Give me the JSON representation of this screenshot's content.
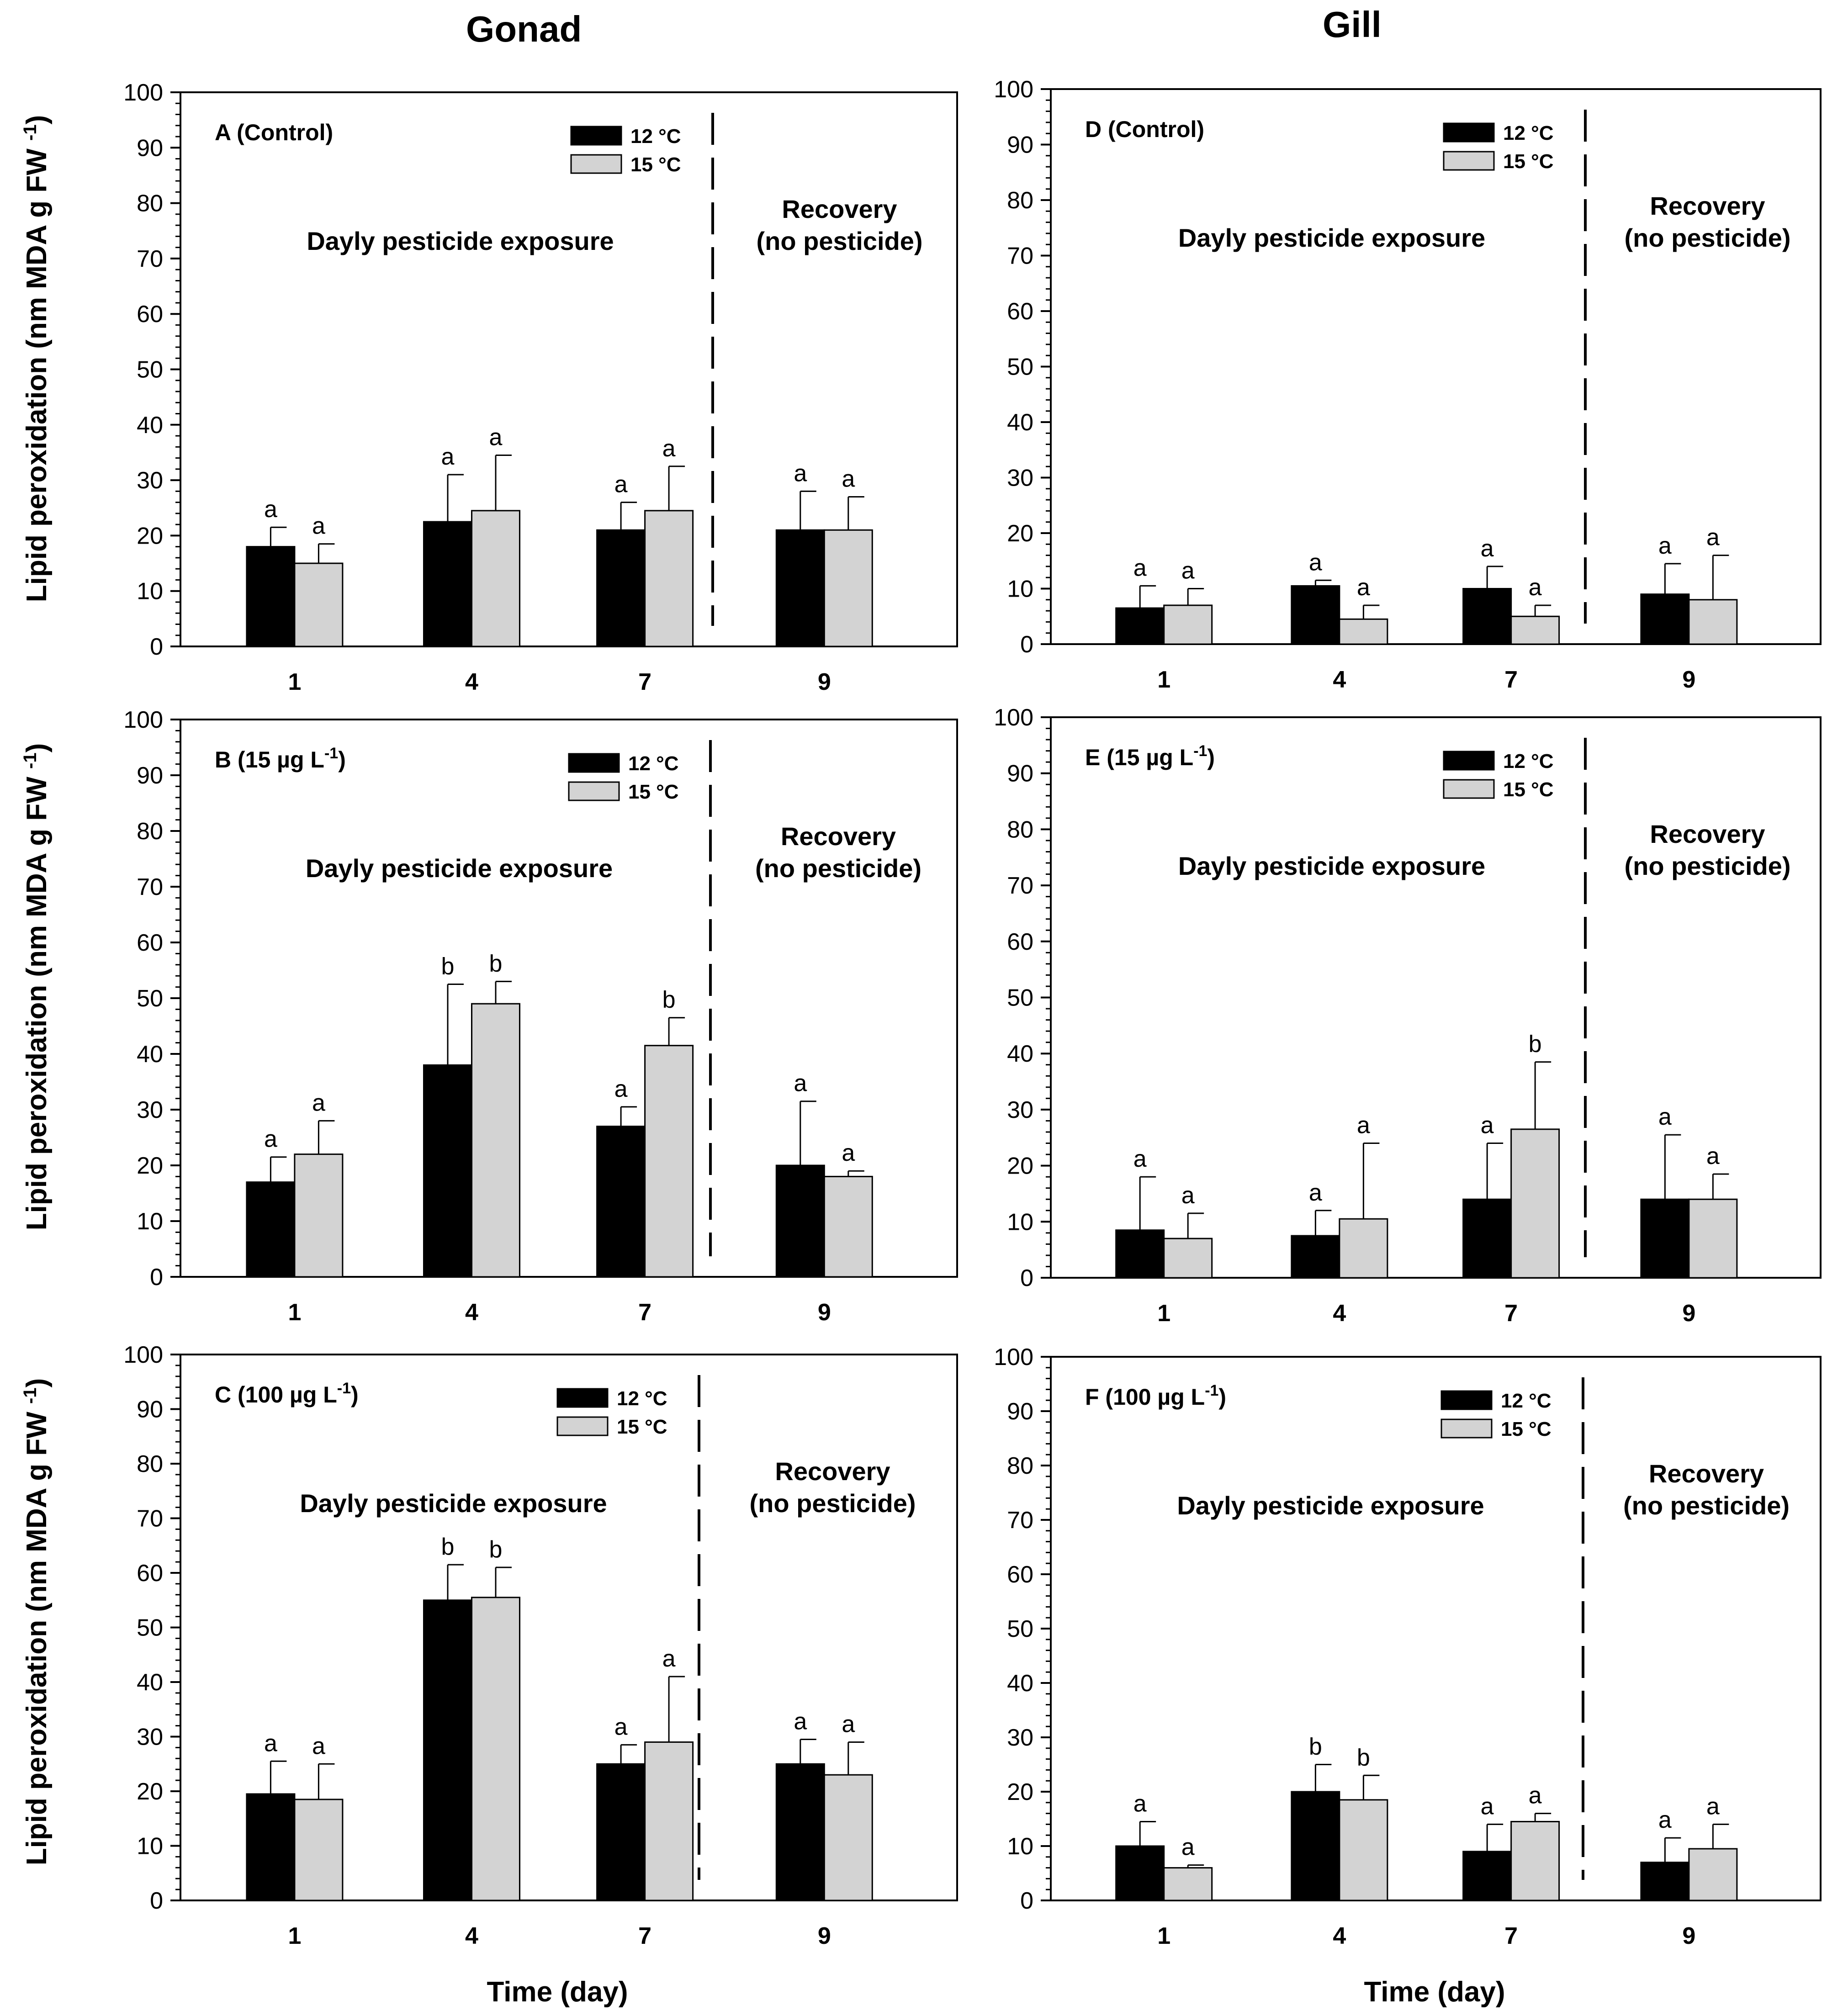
{
  "column_titles": {
    "left": "Gonad",
    "right": "Gill"
  },
  "y_axis_label": "Lipid peroxidation (nm MDA g FW",
  "y_axis_label_sup": "-1",
  "y_axis_label_close": ")",
  "x_axis_label": "Time (day)",
  "legend": {
    "series_1": "12 °C",
    "series_2": "15 °C"
  },
  "annotations": {
    "exposure": "Dayly pesticide exposure",
    "recovery_line1": "Recovery",
    "recovery_line2": "(no pesticide)"
  },
  "colors": {
    "series_1": "#000000",
    "series_2": "#d3d3d3",
    "axis": "#000000"
  },
  "chart_data": [
    {
      "panel": "A",
      "column": "Gonad",
      "type": "bar",
      "title": "A (Control)",
      "title_sup": "",
      "title_close": "",
      "categories": [
        "1",
        "4",
        "7",
        "9"
      ],
      "series": [
        {
          "name": "12 °C",
          "values": [
            18,
            22.5,
            21,
            21
          ],
          "errors": [
            3.5,
            8.5,
            5,
            7
          ],
          "letters": [
            "a",
            "a",
            "a",
            "a"
          ]
        },
        {
          "name": "15 °C",
          "values": [
            15,
            24.5,
            24.5,
            21
          ],
          "errors": [
            3.5,
            10,
            8,
            6
          ],
          "letters": [
            "a",
            "a",
            "a",
            "a"
          ]
        }
      ],
      "ylim": [
        0,
        100
      ],
      "yticks": [
        0,
        10,
        20,
        30,
        40,
        50,
        60,
        70,
        80,
        90,
        100
      ],
      "ylabel": "Lipid peroxidation (nm MDA g FW -1)",
      "xlabel": ""
    },
    {
      "panel": "B",
      "column": "Gonad",
      "type": "bar",
      "title": "B (15 µg L",
      "title_sup": "-1",
      "title_close": ")",
      "categories": [
        "1",
        "4",
        "7",
        "9"
      ],
      "series": [
        {
          "name": "12 °C",
          "values": [
            17,
            38,
            27,
            20
          ],
          "errors": [
            4.5,
            14.5,
            3.5,
            11.5
          ],
          "letters": [
            "a",
            "b",
            "a",
            "a"
          ]
        },
        {
          "name": "15 °C",
          "values": [
            22,
            49,
            41.5,
            18
          ],
          "errors": [
            6,
            4,
            5,
            1
          ],
          "letters": [
            "a",
            "b",
            "b",
            "a"
          ]
        }
      ],
      "ylim": [
        0,
        100
      ],
      "yticks": [
        0,
        10,
        20,
        30,
        40,
        50,
        60,
        70,
        80,
        90,
        100
      ],
      "ylabel": "Lipid peroxidation (nm MDA g FW -1)",
      "xlabel": ""
    },
    {
      "panel": "C",
      "column": "Gonad",
      "type": "bar",
      "title": "C (100 µg L",
      "title_sup": "-1",
      "title_close": ")",
      "categories": [
        "1",
        "4",
        "7",
        "9"
      ],
      "series": [
        {
          "name": "12 °C",
          "values": [
            19.5,
            55,
            25,
            25
          ],
          "errors": [
            6,
            6.5,
            3.5,
            4.5
          ],
          "letters": [
            "a",
            "b",
            "a",
            "a"
          ]
        },
        {
          "name": "15 °C",
          "values": [
            18.5,
            55.5,
            29,
            23
          ],
          "errors": [
            6.5,
            5.5,
            12,
            6
          ],
          "letters": [
            "a",
            "b",
            "a",
            "a"
          ]
        }
      ],
      "ylim": [
        0,
        100
      ],
      "yticks": [
        0,
        10,
        20,
        30,
        40,
        50,
        60,
        70,
        80,
        90,
        100
      ],
      "ylabel": "Lipid peroxidation (nm MDA g FW -1)",
      "xlabel": "Time (day)"
    },
    {
      "panel": "D",
      "column": "Gill",
      "type": "bar",
      "title": "D (Control)",
      "title_sup": "",
      "title_close": "",
      "categories": [
        "1",
        "4",
        "7",
        "9"
      ],
      "series": [
        {
          "name": "12 °C",
          "values": [
            6.5,
            10.5,
            10,
            9
          ],
          "errors": [
            4,
            1,
            4,
            5.5
          ],
          "letters": [
            "a",
            "a",
            "a",
            "a"
          ]
        },
        {
          "name": "15 °C",
          "values": [
            7,
            4.5,
            5,
            8
          ],
          "errors": [
            3,
            2.5,
            2,
            8
          ],
          "letters": [
            "a",
            "a",
            "a",
            "a"
          ]
        }
      ],
      "ylim": [
        0,
        100
      ],
      "yticks": [
        0,
        10,
        20,
        30,
        40,
        50,
        60,
        70,
        80,
        90,
        100
      ],
      "ylabel": "",
      "xlabel": ""
    },
    {
      "panel": "E",
      "column": "Gill",
      "type": "bar",
      "title": "E (15 µg L",
      "title_sup": "-1",
      "title_close": ")",
      "categories": [
        "1",
        "4",
        "7",
        "9"
      ],
      "series": [
        {
          "name": "12 °C",
          "values": [
            8.5,
            7.5,
            14,
            14
          ],
          "errors": [
            9.5,
            4.5,
            10,
            11.5
          ],
          "letters": [
            "a",
            "a",
            "a",
            "a"
          ]
        },
        {
          "name": "15 °C",
          "values": [
            7,
            10.5,
            26.5,
            14
          ],
          "errors": [
            4.5,
            13.5,
            12,
            4.5
          ],
          "letters": [
            "a",
            "a",
            "b",
            "a"
          ]
        }
      ],
      "ylim": [
        0,
        100
      ],
      "yticks": [
        0,
        10,
        20,
        30,
        40,
        50,
        60,
        70,
        80,
        90,
        100
      ],
      "ylabel": "",
      "xlabel": ""
    },
    {
      "panel": "F",
      "column": "Gill",
      "type": "bar",
      "title": "F (100 µg L",
      "title_sup": "-1",
      "title_close": ")",
      "categories": [
        "1",
        "4",
        "7",
        "9"
      ],
      "series": [
        {
          "name": "12 °C",
          "values": [
            10,
            20,
            9,
            7
          ],
          "errors": [
            4.5,
            5,
            5,
            4.5
          ],
          "letters": [
            "a",
            "b",
            "a",
            "a"
          ]
        },
        {
          "name": "15 °C",
          "values": [
            6,
            18.5,
            14.5,
            9.5
          ],
          "errors": [
            0.5,
            4.5,
            1.5,
            4.5
          ],
          "letters": [
            "a",
            "b",
            "a",
            "a"
          ]
        }
      ],
      "ylim": [
        0,
        100
      ],
      "yticks": [
        0,
        10,
        20,
        30,
        40,
        50,
        60,
        70,
        80,
        90,
        100
      ],
      "ylabel": "",
      "xlabel": "Time (day)"
    }
  ]
}
